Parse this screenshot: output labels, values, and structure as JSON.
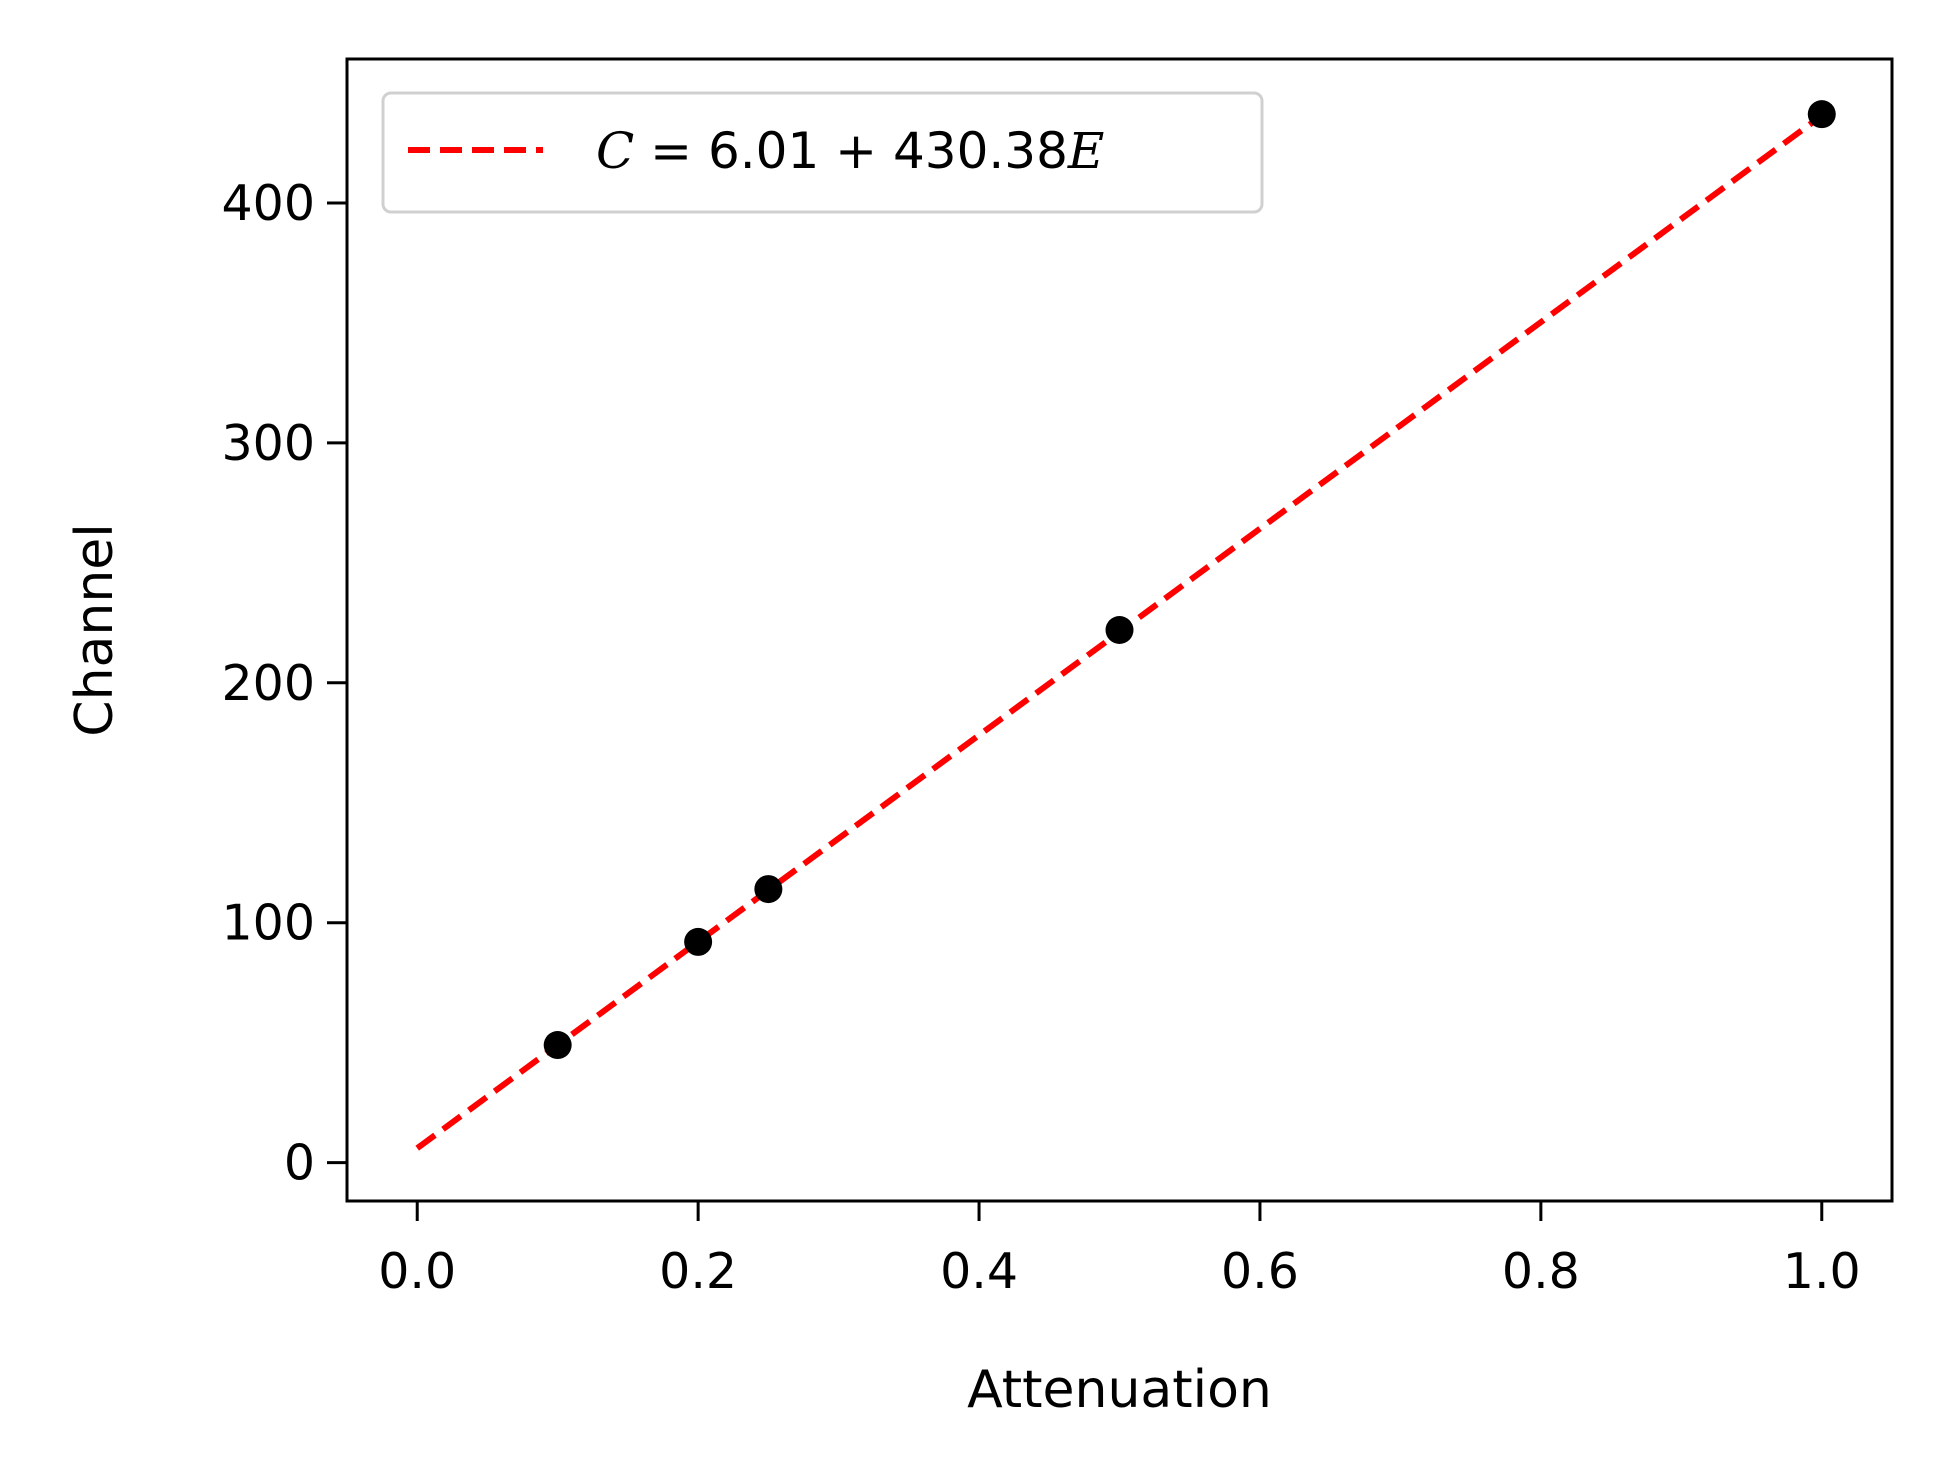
{
  "chart_data": {
    "type": "scatter",
    "xlabel": "Attenuation",
    "ylabel": "Channel",
    "xlim": [
      -0.05,
      1.05
    ],
    "ylim": [
      -16,
      460
    ],
    "x_ticks": [
      0.0,
      0.2,
      0.4,
      0.6,
      0.8,
      1.0
    ],
    "x_tick_labels": [
      "0.0",
      "0.2",
      "0.4",
      "0.6",
      "0.8",
      "1.0"
    ],
    "y_ticks": [
      0,
      100,
      200,
      300,
      400
    ],
    "y_tick_labels": [
      "0",
      "100",
      "200",
      "300",
      "400"
    ],
    "grid": false,
    "legend_placement": "top-left",
    "points": {
      "color": "#000000",
      "x": [
        0.1,
        0.2,
        0.25,
        0.5,
        1.0
      ],
      "y": [
        49,
        92,
        114,
        222,
        437
      ]
    },
    "fit": {
      "legend_label": {
        "lhs_symbol": "C",
        "equals": " = ",
        "intercept": "6.01",
        "plus": " + ",
        "slope": "430.38",
        "var_symbol": "E"
      },
      "intercept": 6.01,
      "slope": 430.38,
      "x_range": [
        0.0,
        1.0
      ],
      "color": "#ff0000",
      "style": "dashed"
    }
  }
}
